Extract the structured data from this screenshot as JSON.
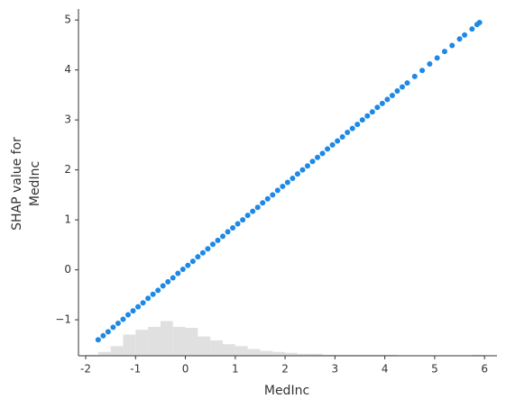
{
  "chart_data": {
    "type": "scatter",
    "xlabel": "MedInc",
    "ylabel": [
      "SHAP value for",
      "MedInc"
    ],
    "xlim": [
      -2.145,
      6.25
    ],
    "ylim": [
      -1.72,
      5.22
    ],
    "xticks": [
      -2,
      -1,
      0,
      1,
      2,
      3,
      4,
      5,
      6
    ],
    "yticks": [
      -1,
      0,
      1,
      2,
      3,
      4,
      5
    ],
    "color": "#1e88e5",
    "x": [
      -1.75,
      -1.65,
      -1.55,
      -1.45,
      -1.35,
      -1.25,
      -1.15,
      -1.05,
      -0.95,
      -0.85,
      -0.75,
      -0.65,
      -0.55,
      -0.45,
      -0.35,
      -0.25,
      -0.15,
      -0.05,
      0.05,
      0.15,
      0.25,
      0.35,
      0.45,
      0.55,
      0.65,
      0.75,
      0.85,
      0.95,
      1.05,
      1.15,
      1.25,
      1.35,
      1.45,
      1.55,
      1.65,
      1.75,
      1.85,
      1.95,
      2.05,
      2.15,
      2.25,
      2.35,
      2.45,
      2.55,
      2.65,
      2.75,
      2.85,
      2.95,
      3.05,
      3.15,
      3.25,
      3.35,
      3.45,
      3.55,
      3.65,
      3.75,
      3.85,
      3.95,
      4.05,
      4.15,
      4.25,
      4.35,
      4.45,
      4.6,
      4.75,
      4.9,
      5.05,
      5.2,
      5.35,
      5.5,
      5.6,
      5.75,
      5.85,
      5.9
    ],
    "values": [
      -1.4,
      -1.32,
      -1.24,
      -1.15,
      -1.07,
      -0.99,
      -0.9,
      -0.82,
      -0.74,
      -0.66,
      -0.57,
      -0.49,
      -0.41,
      -0.32,
      -0.24,
      -0.16,
      -0.07,
      0.01,
      0.09,
      0.17,
      0.26,
      0.34,
      0.42,
      0.51,
      0.59,
      0.67,
      0.76,
      0.84,
      0.92,
      1.0,
      1.09,
      1.17,
      1.25,
      1.34,
      1.42,
      1.5,
      1.59,
      1.67,
      1.75,
      1.83,
      1.92,
      2.0,
      2.08,
      2.17,
      2.25,
      2.33,
      2.42,
      2.5,
      2.58,
      2.66,
      2.75,
      2.83,
      2.91,
      3.0,
      3.08,
      3.16,
      3.25,
      3.33,
      3.41,
      3.49,
      3.58,
      3.66,
      3.74,
      3.87,
      3.99,
      4.12,
      4.24,
      4.37,
      4.49,
      4.62,
      4.7,
      4.82,
      4.91,
      4.95
    ],
    "histogram": {
      "color": "#e0e0e0",
      "bins": [
        -2,
        -1.75,
        -1.5,
        -1.25,
        -1,
        -0.75,
        -0.5,
        -0.25,
        0,
        0.25,
        0.5,
        0.75,
        1,
        1.25,
        1.5,
        1.75,
        2,
        2.25,
        2.5,
        2.75,
        3,
        3.25,
        3.5,
        3.75,
        4,
        4.25,
        4.5,
        4.75,
        5,
        5.25,
        5.5,
        5.75,
        6
      ],
      "counts": [
        1,
        4,
        10,
        22,
        27,
        30,
        36,
        30,
        29,
        20,
        16,
        12,
        10,
        7,
        5,
        4,
        3,
        2,
        2,
        1,
        1,
        1,
        1,
        1,
        1,
        0,
        0,
        0,
        0,
        0,
        0,
        1
      ]
    }
  }
}
